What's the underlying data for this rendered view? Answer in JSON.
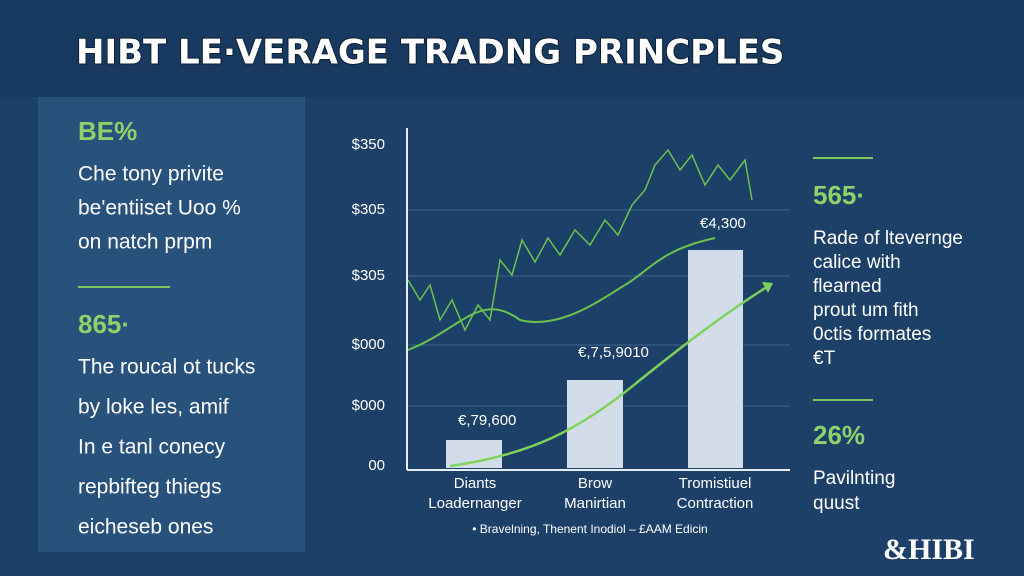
{
  "header": {
    "title": "HIBT LE·VERAGE TRADNG PRINCPLES"
  },
  "left_panel": {
    "sections": [
      {
        "stat": "BE%",
        "lines": [
          "Che tony privite",
          "be'entiiset Uoo %",
          "on natch prpm"
        ]
      },
      {
        "stat": "865·",
        "lines": [
          "The roucal ot tucks",
          "by loke les, amif",
          "In e tanl conecy",
          "repbifteg thiegs",
          "eicheseb ones"
        ]
      }
    ]
  },
  "right_panel": {
    "sections": [
      {
        "stat": "565·",
        "lines": [
          "Rade of ltevernge",
          "calice with",
          "flearned",
          "prout um fith",
          "0ctis formates",
          "€T"
        ]
      },
      {
        "stat": "26%",
        "lines": [
          "Pavilnting",
          "quust"
        ]
      }
    ]
  },
  "chart": {
    "axis_labels": [
      "$350",
      "$305",
      "$305",
      "$000",
      "$000",
      "00"
    ],
    "bar_labels": [
      "€,79,600",
      "€,7,5,9010",
      "€4,300"
    ],
    "categories": [
      [
        "Diants",
        "Loadernanger"
      ],
      [
        "Brow",
        "Manirtian"
      ],
      [
        "Tromistiuel",
        "Contraction"
      ]
    ],
    "footer": "• Bravelning, Thenent Inodiol – £AAM Edicin"
  },
  "logo": "&HIBI"
}
